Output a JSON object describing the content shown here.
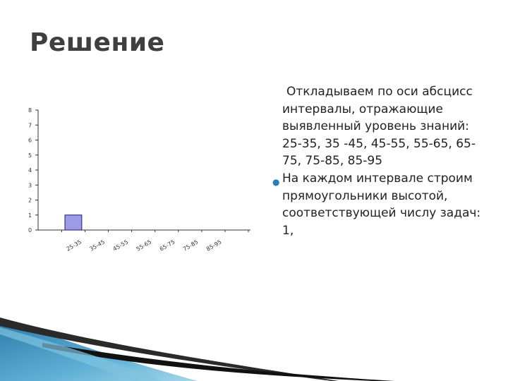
{
  "slide": {
    "title": "Решение",
    "paragraphs": [
      "Откладываем по оси абсцисс интервалы, отражающие выявленный уровень знаний: 25-35, 35 -45, 45-55, 55-65, 65-75, 75-85, 85-95",
      "На каждом интервале строим прямоугольники высотой, соответствующей числу задач: 1,"
    ]
  },
  "chart_data": {
    "type": "bar",
    "categories": [
      "25-35",
      "35-45",
      "45-55",
      "55-65",
      "65-75",
      "75-85",
      "85-95"
    ],
    "values": [
      1,
      0,
      0,
      0,
      0,
      0,
      0
    ],
    "y_ticks": [
      "0",
      "1",
      "2",
      "3",
      "4",
      "5",
      "6",
      "7",
      "8"
    ],
    "ylim": [
      0,
      8
    ],
    "grid": false,
    "legend": "none",
    "bar_color": "#9c9ce6",
    "bar_stroke": "#1a1a7a",
    "axis_color": "#333333"
  }
}
